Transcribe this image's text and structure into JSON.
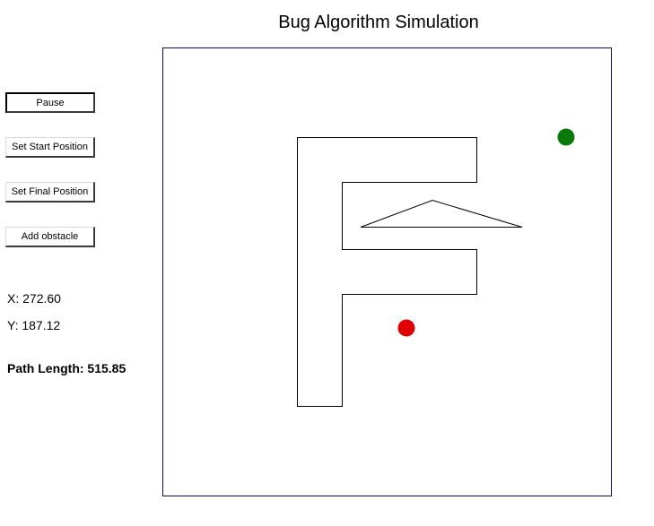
{
  "window": {
    "title": "Bug Algorithm Simulation"
  },
  "controls": {
    "pause_label": "Pause",
    "set_start_label": "Set Start Position",
    "set_final_label": "Set Final Position",
    "add_obstacle_label": "Add obstacle"
  },
  "readout": {
    "x_text": "X: 272.60",
    "y_text": "Y: 187.12",
    "path_length_text": "Path Length: 515.85"
  },
  "colors": {
    "start_point": "#e00000",
    "goal_point": "#0a7a0a",
    "canvas_border": "#0a0a66"
  }
}
